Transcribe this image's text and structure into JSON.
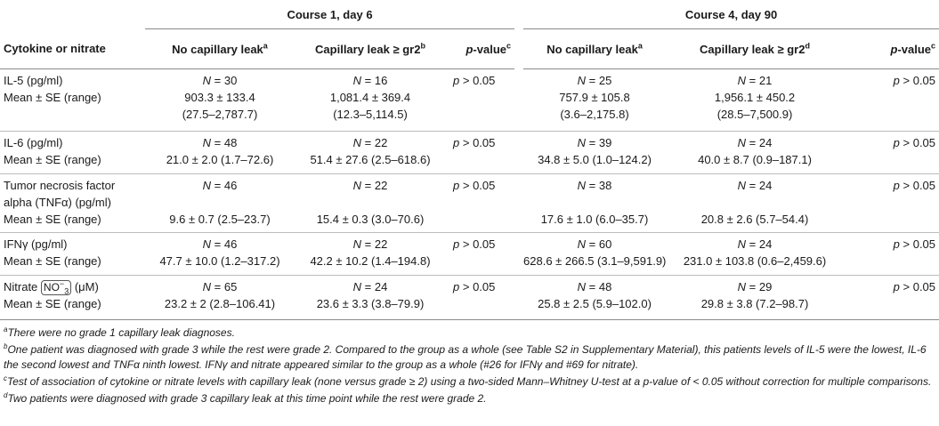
{
  "course_headers": {
    "course1": "Course 1, day 6",
    "course4": "Course 4, day 90"
  },
  "columns": {
    "cytokine": "Cytokine or nitrate",
    "no_leak": "No capillary leak",
    "no_leak_sup": "a",
    "leak_c1": "Capillary leak ≥ gr2",
    "leak_c1_sup": "b",
    "pvalue_p": "p",
    "pvalue_rest": "-value",
    "pvalue_sup": "c",
    "leak_c4": "Capillary leak ≥ gr2",
    "leak_c4_sup": "d"
  },
  "rows": [
    {
      "label_lines": [
        "IL-5 (pg/ml)",
        "Mean ± SE (range)"
      ],
      "c1_no": {
        "n": "30",
        "mean": "903.3 ± 133.4",
        "range": "(27.5–2,787.7)"
      },
      "c1_leak": {
        "n": "16",
        "mean": "1,081.4 ± 369.4",
        "range": "(12.3–5,114.5)"
      },
      "c1_p": "> 0.05",
      "c4_no": {
        "n": "25",
        "mean": "757.9 ± 105.8",
        "range": "(3.6–2,175.8)"
      },
      "c4_leak": {
        "n": "21",
        "mean": "1,956.1 ± 450.2",
        "range": "(28.5–7,500.9)"
      },
      "c4_p": "> 0.05"
    },
    {
      "label_lines": [
        "IL-6 (pg/ml)",
        "Mean ± SE (range)"
      ],
      "c1_no": {
        "n": "48",
        "mean": "21.0 ± 2.0 (1.7–72.6)"
      },
      "c1_leak": {
        "n": "22",
        "mean": "51.4 ± 27.6 (2.5–618.6)"
      },
      "c1_p": "> 0.05",
      "c4_no": {
        "n": "39",
        "mean": "34.8 ± 5.0 (1.0–124.2)"
      },
      "c4_leak": {
        "n": "24",
        "mean": "40.0 ± 8.7 (0.9–187.1)"
      },
      "c4_p": "> 0.05"
    },
    {
      "label_lines": [
        "Tumor necrosis factor",
        "alpha (TNFα) (pg/ml)",
        "Mean ± SE (range)"
      ],
      "c1_no": {
        "n": "46",
        "mean": "9.6 ± 0.7 (2.5–23.7)"
      },
      "c1_leak": {
        "n": "22",
        "mean": "15.4 ± 0.3 (3.0–70.6)"
      },
      "c1_p": "> 0.05",
      "c4_no": {
        "n": "38",
        "mean": "17.6 ± 1.0 (6.0–35.7)"
      },
      "c4_leak": {
        "n": "24",
        "mean": "20.8 ± 2.6 (5.7–54.4)"
      },
      "c4_p": "> 0.05"
    },
    {
      "label_lines": [
        "IFNγ (pg/ml)",
        "Mean ± SE (range)"
      ],
      "c1_no": {
        "n": "46",
        "mean": "47.7 ± 10.0 (1.2–317.2)"
      },
      "c1_leak": {
        "n": "22",
        "mean": "42.2 ± 10.2 (1.4–194.8)"
      },
      "c1_p": "> 0.05",
      "c4_no": {
        "n": "60",
        "mean": "628.6 ± 266.5 (3.1–9,591.9)"
      },
      "c4_leak": {
        "n": "24",
        "mean": "231.0 ± 103.8 (0.6–2,459.6)"
      },
      "c4_p": "> 0.05"
    },
    {
      "label_prefix": "Nitrate",
      "label_formula": "NO",
      "label_formula_sup": "−",
      "label_formula_sub": "3",
      "label_suffix": "(μM)",
      "label_line2": "Mean ± SE (range)",
      "c1_no": {
        "n": "65",
        "mean": "23.2 ± 2 (2.8–106.41)"
      },
      "c1_leak": {
        "n": "24",
        "mean": "23.6 ± 3.3 (3.8–79.9)"
      },
      "c1_p": "> 0.05",
      "c4_no": {
        "n": "48",
        "mean": "25.8 ± 2.5 (5.9–102.0)"
      },
      "c4_leak": {
        "n": "29",
        "mean": "29.8 ± 3.8 (7.2–98.7)"
      },
      "c4_p": "> 0.05"
    }
  ],
  "n_symbol": "N",
  "n_eq": " = ",
  "p_symbol": "p",
  "footnotes": [
    {
      "mark": "a",
      "text": "There were no grade 1 capillary leak diagnoses."
    },
    {
      "mark": "b",
      "text": "One patient was diagnosed with grade 3 while the rest were grade 2. Compared to the group as a whole (see Table S2 in Supplementary Material), this patients levels of IL-5 were the lowest, IL-6 the second lowest and TNFα ninth lowest. IFNγ and nitrate appeared similar to the group as a whole (#26 for IFNγ and #69 for nitrate)."
    },
    {
      "mark": "c",
      "text": "Test of association of cytokine or nitrate levels with capillary leak (none versus grade ≥ 2) using a two-sided Mann–Whitney U-test at a p-value of < 0.05 without correction for multiple comparisons."
    },
    {
      "mark": "d",
      "text": "Two patients were diagnosed with grade 3 capillary leak at this time point while the rest were grade 2."
    }
  ]
}
